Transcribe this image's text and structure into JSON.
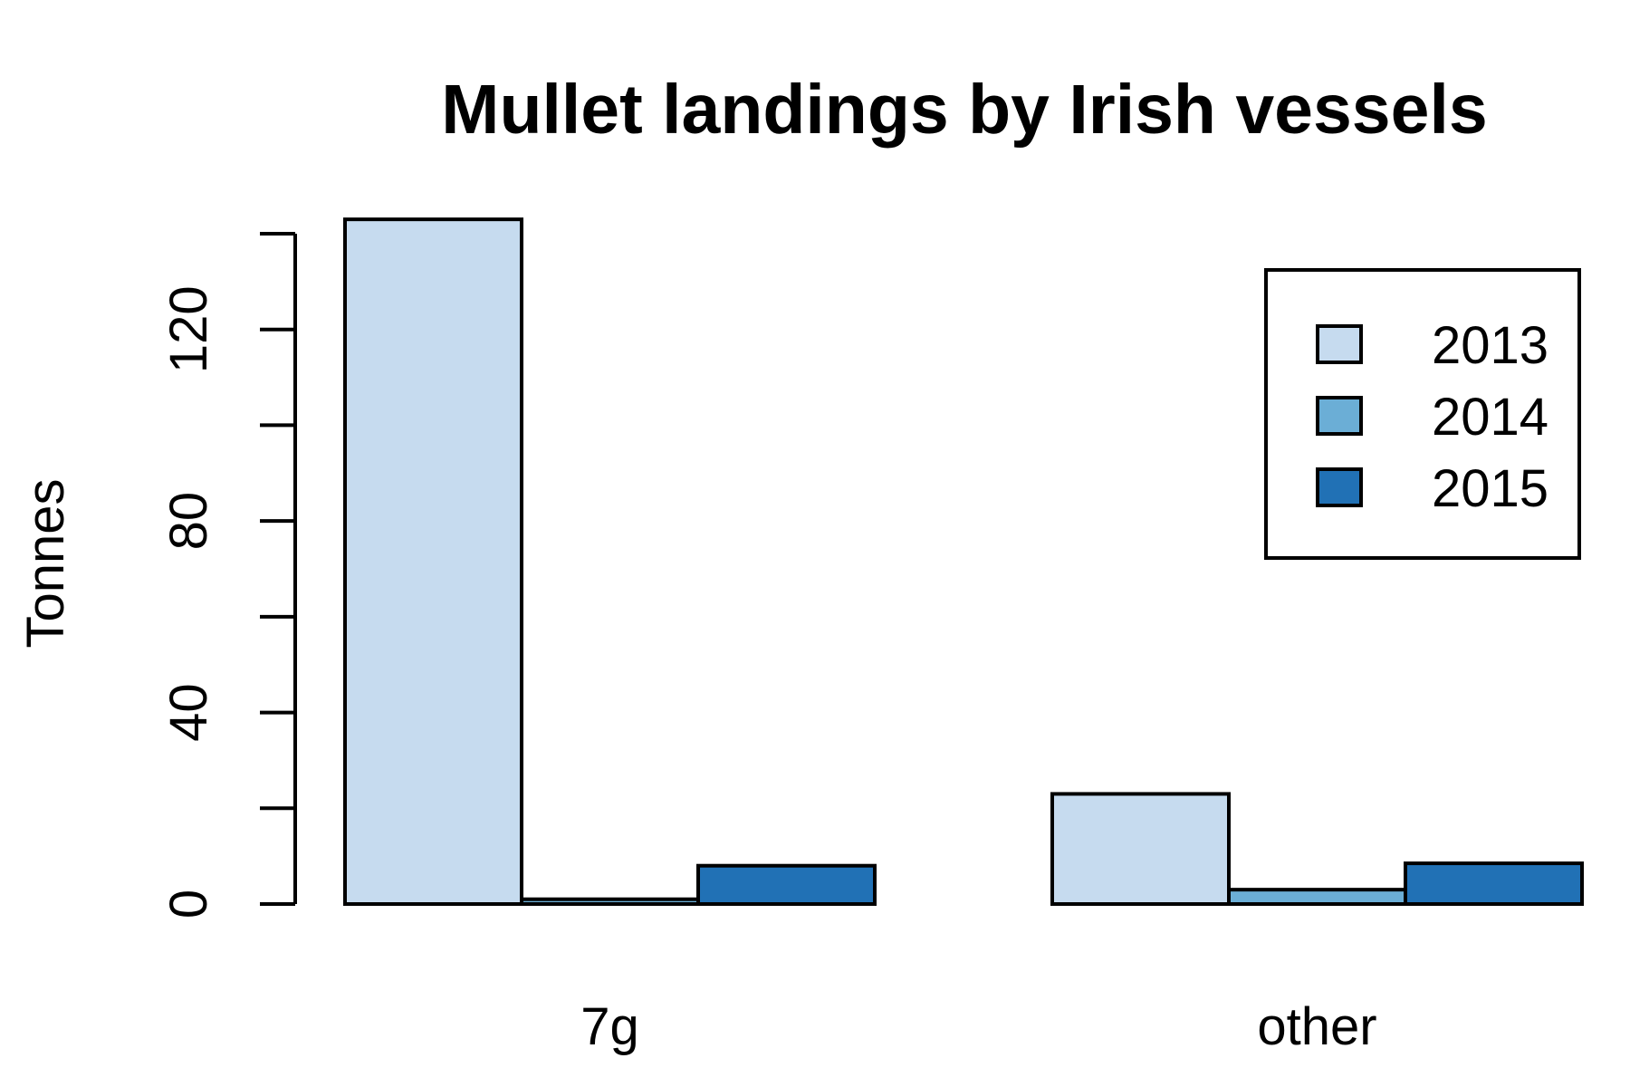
{
  "chart_data": {
    "type": "bar",
    "title": "Mullet landings by Irish vessels",
    "ylabel": "Tonnes",
    "xlabel": "",
    "categories": [
      "7g",
      "other"
    ],
    "series": [
      {
        "name": "2013",
        "color": "#c6dbef",
        "values": [
          143,
          23
        ]
      },
      {
        "name": "2014",
        "color": "#6baed6",
        "values": [
          1,
          3
        ]
      },
      {
        "name": "2015",
        "color": "#2171b5",
        "values": [
          8,
          8.5
        ]
      }
    ],
    "ylim": [
      0,
      140
    ],
    "yticks": [
      0,
      20,
      40,
      60,
      80,
      100,
      120,
      140
    ],
    "ytick_labels": [
      "0",
      "",
      "40",
      "",
      "80",
      "",
      "120",
      ""
    ],
    "legend_position": "top-right",
    "grid": false
  }
}
